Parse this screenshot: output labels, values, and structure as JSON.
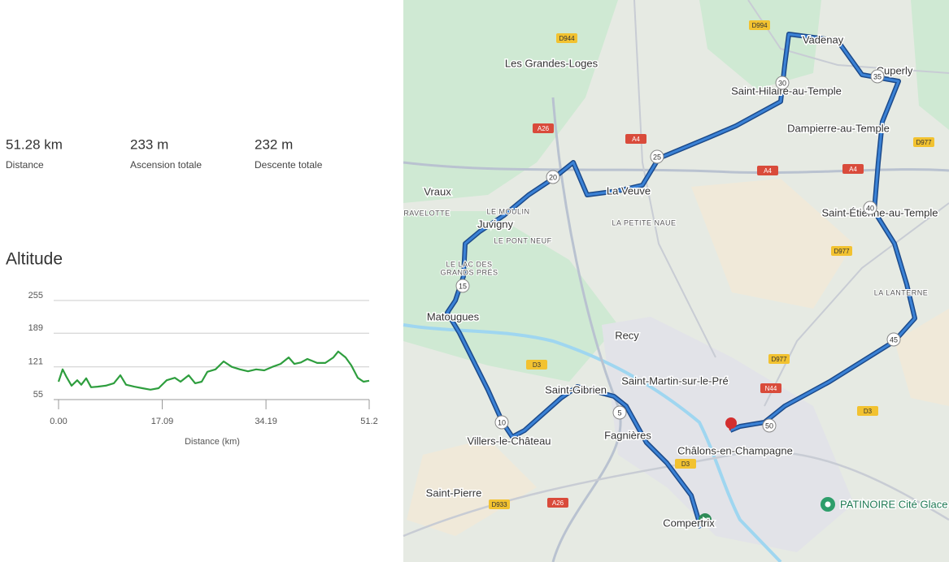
{
  "stats": [
    {
      "value": "51.28 km",
      "label": "Distance"
    },
    {
      "value": "233 m",
      "label": "Ascension totale"
    },
    {
      "value": "232 m",
      "label": "Descente totale"
    }
  ],
  "chart_data": {
    "type": "line",
    "title": "Altitude",
    "x_label": "Distance (km)",
    "x": [
      0,
      0.67,
      1.34,
      2.14,
      3.08,
      3.75,
      4.56,
      5.36,
      6.43,
      7.77,
      9.11,
      10.19,
      11.12,
      12.46,
      13.8,
      15.15,
      16.49,
      17.83,
      19.17,
      20.1,
      21.44,
      22.52,
      23.59,
      24.53,
      25.87,
      27.21,
      28.55,
      29.89,
      31.23,
      32.57,
      33.91,
      35.25,
      36.59,
      37.93,
      38.87,
      39.94,
      41.01,
      42.62,
      43.96,
      45.3,
      46.1,
      47.31,
      48.25,
      49.32,
      50.26,
      51.2
    ],
    "series": [
      {
        "name": "Altitude",
        "color": "#2e9e3e",
        "values": [
          91,
          116,
          100,
          83,
          94,
          85,
          98,
          80,
          81,
          83,
          88,
          104,
          85,
          81,
          78,
          75,
          78,
          94,
          99,
          91,
          104,
          88,
          91,
          111,
          116,
          132,
          121,
          116,
          112,
          116,
          114,
          121,
          127,
          140,
          127,
          130,
          137,
          129,
          129,
          140,
          152,
          140,
          124,
          99,
          91,
          93
        ]
      }
    ],
    "xlim": [
      0,
      51.2
    ],
    "xticks": [
      {
        "value": 0,
        "label": "0.00"
      },
      17.09,
      34.19,
      51.2
    ],
    "ylim": [
      55,
      255
    ],
    "yticks": [
      255,
      189,
      121,
      55
    ],
    "grid": true
  },
  "map": {
    "places": [
      "Les Grandes-Loges",
      "Vadenay",
      "Cuperly",
      "Saint-Hilaire-au-Temple",
      "Dampierre-au-Temple",
      "Vraux",
      "La Veuve",
      "Saint-Étienne-au-Temple",
      "Juvigny",
      "Matougues",
      "Recy",
      "Saint-Martin-sur-le-Pré",
      "Saint-Gibrien",
      "Fagnières",
      "Villers-le-Château",
      "Châlons-en-Champagne",
      "Saint-Pierre",
      "Compertrix"
    ],
    "localities": [
      "RAVELOTTE",
      "LE MOULIN",
      "LE PONT NEUF",
      "LE LAC DES",
      "GRANDS PRÉS",
      "LA PETITE NAUE",
      "LA LANTERNE"
    ],
    "roads": [
      "D944",
      "D994",
      "A26",
      "A4",
      "A4",
      "A4",
      "D977",
      "D977",
      "D977",
      "N44",
      "D3",
      "D3",
      "D3",
      "D933",
      "A26"
    ],
    "route_markers": [
      "5",
      "10",
      "15",
      "20",
      "25",
      "30",
      "35",
      "40",
      "45",
      "50"
    ],
    "poi": "PATINOIRE Cité Glace"
  }
}
